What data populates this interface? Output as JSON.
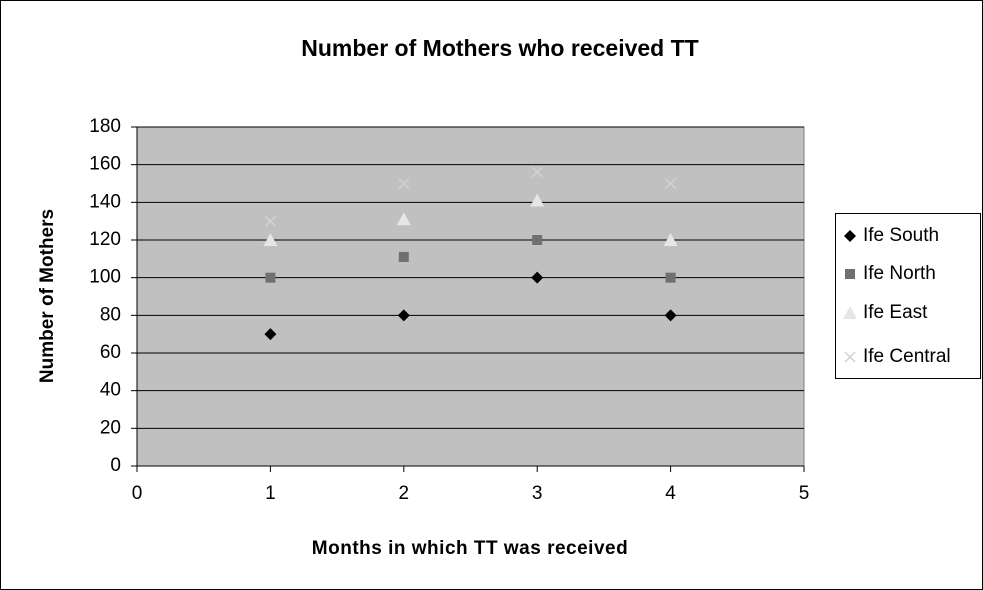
{
  "chart_data": {
    "type": "scatter",
    "title": "Number of Mothers who received TT",
    "xlabel": "Months in which TT was received",
    "ylabel": "Number of Mothers",
    "x": [
      1,
      2,
      3,
      4
    ],
    "series": [
      {
        "name": "Ife South",
        "color": "#000000",
        "marker": "diamond",
        "values": [
          70,
          80,
          100,
          80
        ]
      },
      {
        "name": "Ife North",
        "color": "#707070",
        "marker": "square",
        "values": [
          100,
          111,
          120,
          100
        ]
      },
      {
        "name": "Ife East",
        "color": "#e6e6e6",
        "marker": "triangle",
        "values": [
          120,
          131,
          141,
          120
        ]
      },
      {
        "name": "Ife Central",
        "color": "#d2d2d2",
        "marker": "x",
        "values": [
          130,
          150,
          156,
          150
        ]
      }
    ],
    "xlim": [
      0,
      5
    ],
    "xticks": [
      0,
      1,
      2,
      3,
      4,
      5
    ],
    "ylim": [
      0,
      180
    ],
    "yticks": [
      0,
      20,
      40,
      60,
      80,
      100,
      120,
      140,
      160,
      180
    ],
    "grid": true,
    "legend": "right",
    "plot_background": "#c0c0c0"
  }
}
